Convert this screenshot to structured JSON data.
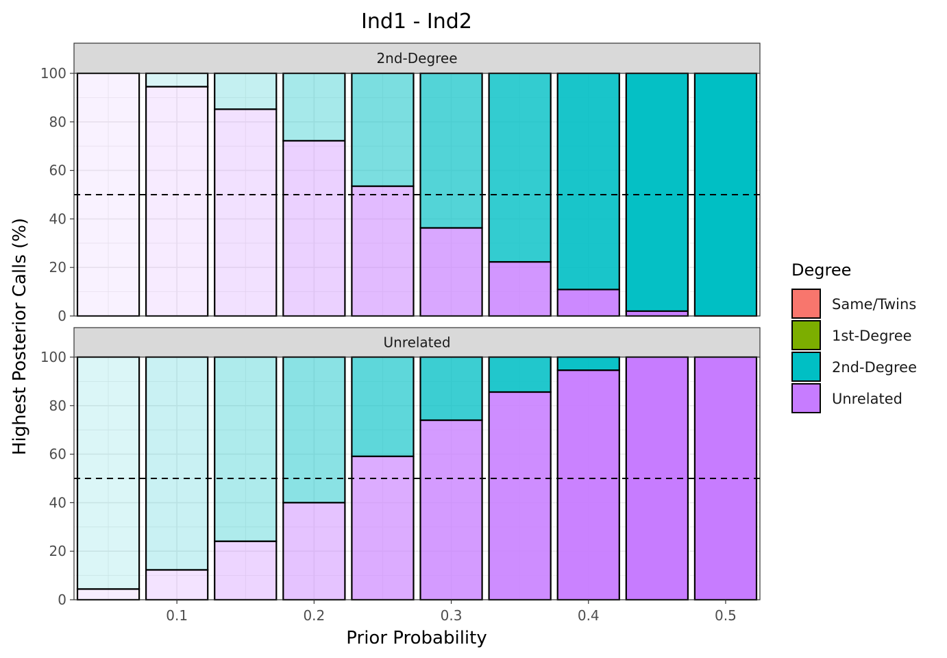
{
  "chart_data": {
    "type": "bar",
    "stacked": true,
    "title": "Ind1 - Ind2",
    "xlabel": "Prior Probability",
    "ylabel": "Highest Posterior Calls (%)",
    "x": [
      0.05,
      0.1,
      0.15,
      0.2,
      0.25,
      0.3,
      0.35,
      0.4,
      0.45,
      0.5
    ],
    "x_ticks": [
      "0.1",
      "0.2",
      "0.3",
      "0.4",
      "0.5"
    ],
    "x_tick_values": [
      0.1,
      0.2,
      0.3,
      0.4,
      0.5
    ],
    "y_ticks": [
      "0",
      "20",
      "40",
      "60",
      "80",
      "100"
    ],
    "y_tick_values": [
      0,
      20,
      40,
      60,
      80,
      100
    ],
    "xlim": [
      0.025,
      0.525
    ],
    "ylim": [
      0,
      100
    ],
    "reference_line": 50,
    "legend": {
      "title": "Degree",
      "placement": "right",
      "entries": [
        {
          "label": "Same/Twins",
          "color": "#F8766D"
        },
        {
          "label": "1st-Degree",
          "color": "#7CAE00"
        },
        {
          "label": "2nd-Degree",
          "color": "#00BFC4"
        },
        {
          "label": "Unrelated",
          "color": "#C77CFF"
        }
      ]
    },
    "panels": [
      {
        "label": "2nd-Degree",
        "true_degree": "2nd-Degree",
        "series": [
          {
            "name": "Unrelated",
            "values": [
              100,
              94.5,
              85.2,
              72.2,
              53.5,
              36.3,
              22.3,
              10.9,
              2.0,
              0
            ]
          },
          {
            "name": "2nd-Degree",
            "values": [
              0,
              5.5,
              14.8,
              27.8,
              46.5,
              63.7,
              77.7,
              89.1,
              98.0,
              100
            ]
          }
        ]
      },
      {
        "label": "Unrelated",
        "true_degree": "Unrelated",
        "series": [
          {
            "name": "Unrelated",
            "values": [
              4.4,
              12.3,
              24.1,
              40.0,
              59.1,
              74.0,
              85.6,
              94.6,
              100,
              100
            ]
          },
          {
            "name": "2nd-Degree",
            "values": [
              95.6,
              87.7,
              75.9,
              60.0,
              40.9,
              26.0,
              14.4,
              5.4,
              0,
              0
            ]
          }
        ]
      }
    ]
  }
}
